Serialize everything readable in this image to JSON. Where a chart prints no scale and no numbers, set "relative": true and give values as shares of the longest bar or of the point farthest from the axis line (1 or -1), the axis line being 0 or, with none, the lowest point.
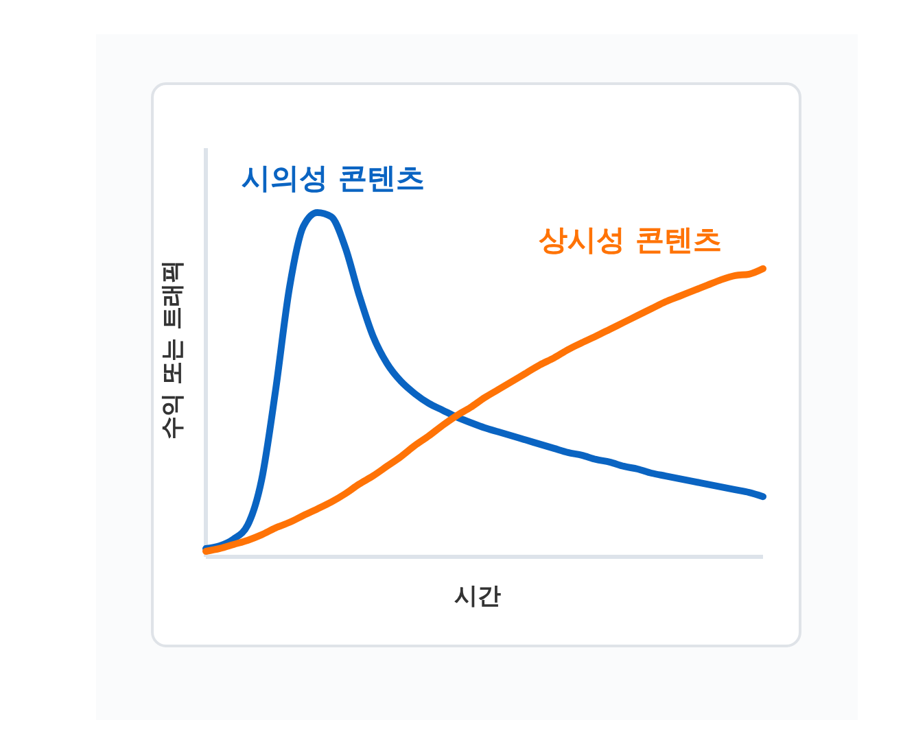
{
  "chart_data": {
    "type": "line",
    "relative": true,
    "xlabel": "시간",
    "ylabel": "수익 또는 트래픽",
    "categories": [
      null,
      null,
      null,
      null,
      null,
      null,
      null,
      null,
      null,
      null,
      null,
      null,
      null,
      null,
      null,
      null,
      null,
      null,
      null,
      null,
      null,
      null,
      null,
      null,
      null,
      null,
      null,
      null,
      null,
      null,
      null,
      null,
      null,
      null,
      null,
      null,
      null,
      null,
      null,
      null,
      null
    ],
    "series": [
      {
        "name": "시의성 콘텐츠",
        "color": "#0a64c2",
        "values": [
          0.024,
          0.032,
          0.052,
          0.092,
          0.223,
          0.482,
          0.781,
          0.96,
          1,
          0.988,
          0.9,
          0.761,
          0.641,
          0.562,
          0.51,
          0.474,
          0.446,
          0.426,
          0.406,
          0.39,
          0.375,
          0.363,
          0.351,
          0.339,
          0.327,
          0.315,
          0.303,
          0.295,
          0.283,
          0.275,
          0.263,
          0.255,
          0.243,
          0.235,
          0.227,
          0.219,
          0.211,
          0.203,
          0.195,
          0.187,
          0.175
        ]
      },
      {
        "name": "상시성 콘텐츠",
        "color": "#ff7306",
        "values": [
          0.016,
          0.024,
          0.036,
          0.048,
          0.064,
          0.084,
          0.1,
          0.12,
          0.139,
          0.159,
          0.183,
          0.211,
          0.235,
          0.263,
          0.291,
          0.323,
          0.351,
          0.382,
          0.41,
          0.434,
          0.462,
          0.486,
          0.51,
          0.534,
          0.558,
          0.578,
          0.602,
          0.622,
          0.641,
          0.661,
          0.681,
          0.701,
          0.721,
          0.741,
          0.757,
          0.773,
          0.789,
          0.805,
          0.817,
          0.821,
          0.837
        ]
      }
    ]
  }
}
